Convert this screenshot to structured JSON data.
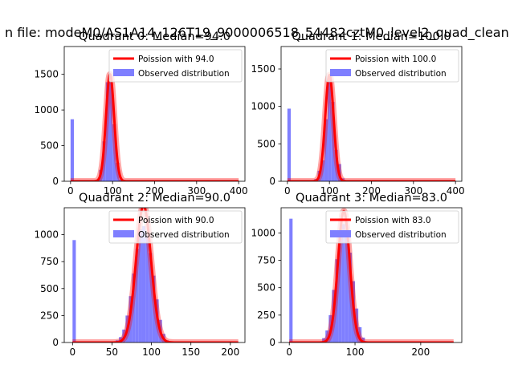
{
  "figure": {
    "suptitle": "n file: modeM0/AS1A14_126T19_9000006518_54482cztM0_level2_quad_clean",
    "colors": {
      "poisson_line": "#ff0000",
      "observed_fill": "#7f7fff",
      "observed_edge": "#5f5fef",
      "axis": "#000000",
      "background": "#ffffff"
    }
  },
  "chart_data": [
    {
      "type": "bar",
      "title": "Quadrant 0: Median=94.0",
      "xlabel": "",
      "ylabel": "",
      "xlim": [
        -15,
        415
      ],
      "ylim": [
        0,
        1890
      ],
      "xticks": [
        0,
        100,
        200,
        300,
        400
      ],
      "yticks": [
        0,
        500,
        1000,
        1500
      ],
      "legend": {
        "placement": "top-right",
        "entries": [
          "Poission with 94.0",
          "Observed distribution"
        ]
      },
      "poisson_mean": 94.0,
      "poisson_peak": 1500,
      "poisson_sigma": 9.7,
      "curve_xrange": [
        0,
        400
      ],
      "zero_bin_count": 870,
      "bin_width": 8,
      "hist_x": [
        60,
        68,
        76,
        84,
        92,
        100,
        108,
        116
      ],
      "hist_y": [
        10,
        160,
        560,
        1390,
        1390,
        800,
        260,
        25
      ],
      "series": [
        {
          "name": "Poission with 94.0",
          "kind": "line"
        },
        {
          "name": "Observed distribution",
          "kind": "hist"
        }
      ]
    },
    {
      "type": "bar",
      "title": "Quadrant 1: Median=100.0",
      "xlabel": "",
      "ylabel": "",
      "xlim": [
        -15,
        415
      ],
      "ylim": [
        0,
        1800
      ],
      "xticks": [
        0,
        100,
        200,
        300,
        400
      ],
      "yticks": [
        0,
        500,
        1000,
        1500
      ],
      "legend": {
        "placement": "top-right",
        "entries": [
          "Poission with 100.0",
          "Observed distribution"
        ]
      },
      "poisson_mean": 100.0,
      "poisson_peak": 1420,
      "poisson_sigma": 10,
      "curve_xrange": [
        0,
        400
      ],
      "zero_bin_count": 970,
      "bin_width": 8,
      "hist_x": [
        64,
        72,
        80,
        88,
        96,
        104,
        112,
        120,
        128
      ],
      "hist_y": [
        30,
        140,
        280,
        830,
        1380,
        1060,
        420,
        230,
        40
      ],
      "series": [
        {
          "name": "Poission with 100.0",
          "kind": "line"
        },
        {
          "name": "Observed distribution",
          "kind": "hist"
        }
      ]
    },
    {
      "type": "bar",
      "title": "Quadrant 2: Median=90.0",
      "xlabel": "",
      "ylabel": "",
      "xlim": [
        -10.5,
        218.5
      ],
      "ylim": [
        0,
        1250
      ],
      "xticks": [
        0,
        50,
        100,
        150,
        200
      ],
      "yticks": [
        0,
        250,
        500,
        750,
        1000
      ],
      "legend": {
        "placement": "top-right",
        "entries": [
          "Poission with 90.0",
          "Observed distribution"
        ]
      },
      "poisson_mean": 90.0,
      "poisson_peak": 1270,
      "poisson_sigma": 9.5,
      "curve_xrange": [
        0,
        210
      ],
      "zero_bin_count": 950,
      "bin_width": 4.2,
      "hist_x": [
        50.4,
        54.6,
        58.8,
        63,
        67.2,
        71.4,
        75.6,
        79.8,
        84,
        88.2,
        92.4,
        96.6,
        100.8,
        105,
        109.2,
        113.4,
        117.6
      ],
      "hist_y": [
        5,
        20,
        50,
        120,
        250,
        430,
        640,
        870,
        1050,
        1080,
        1000,
        830,
        620,
        400,
        210,
        80,
        20
      ],
      "series": [
        {
          "name": "Poission with 90.0",
          "kind": "line"
        },
        {
          "name": "Observed distribution",
          "kind": "hist"
        }
      ]
    },
    {
      "type": "bar",
      "title": "Quadrant 3: Median=83.0",
      "xlabel": "",
      "ylabel": "",
      "xlim": [
        -12.5,
        262.5
      ],
      "ylim": [
        0,
        1230
      ],
      "xticks": [
        0,
        100,
        200
      ],
      "yticks": [
        0,
        250,
        500,
        750,
        1000
      ],
      "legend": {
        "placement": "top-right",
        "entries": [
          "Poission with 83.0",
          "Observed distribution"
        ]
      },
      "poisson_mean": 83.0,
      "poisson_peak": 1200,
      "poisson_sigma": 9.1,
      "curve_xrange": [
        0,
        250
      ],
      "zero_bin_count": 1130,
      "bin_width": 5,
      "hist_x": [
        45,
        50,
        55,
        60,
        65,
        70,
        75,
        80,
        85,
        90,
        95,
        100,
        105,
        110,
        115
      ],
      "hist_y": [
        10,
        40,
        110,
        250,
        480,
        760,
        980,
        1080,
        1030,
        820,
        560,
        310,
        140,
        45,
        10
      ],
      "series": [
        {
          "name": "Poission with 83.0",
          "kind": "line"
        },
        {
          "name": "Observed distribution",
          "kind": "hist"
        }
      ]
    }
  ]
}
